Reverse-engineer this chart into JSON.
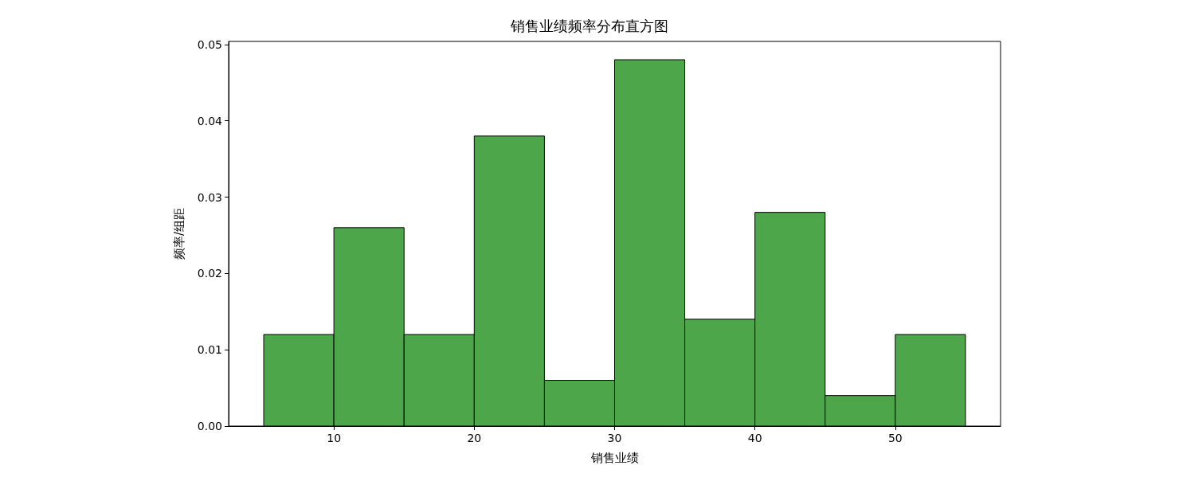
{
  "chart_data": {
    "type": "histogram",
    "title": "销售业绩频率分布直方图",
    "xlabel": "销售业绩",
    "ylabel": "频率/组距",
    "bins": [
      5,
      10,
      15,
      20,
      25,
      30,
      35,
      40,
      45,
      50,
      55
    ],
    "values": [
      0.012,
      0.026,
      0.012,
      0.038,
      0.006,
      0.048,
      0.014,
      0.028,
      0.004,
      0.012
    ],
    "color": "#4ea64a",
    "xlim": [
      2.5,
      57.5
    ],
    "xticks": [
      10,
      20,
      30,
      40,
      50
    ],
    "ylim": [
      0,
      0.0504
    ],
    "yticks": [
      {
        "value": 0,
        "label": "0.00"
      },
      0.01,
      0.02,
      0.03,
      0.04,
      0.05
    ]
  }
}
